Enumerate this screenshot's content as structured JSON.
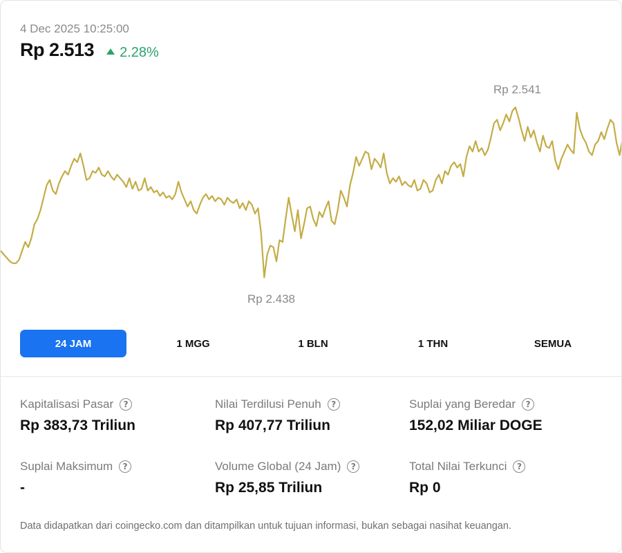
{
  "header": {
    "timestamp": "4 Dec 2025 10:25:00",
    "price": "Rp 2.513",
    "change": "2.28%",
    "change_color": "#2aa36b"
  },
  "chart_data": {
    "type": "line",
    "title": "",
    "max_label": "Rp 2.541",
    "min_label": "Rp 2.438",
    "max_value": 2541,
    "min_value": 2438,
    "line_color": "#c4ac45",
    "y_unit": "Rp",
    "x_range": "24 hours",
    "values": [
      2456,
      2454,
      2452,
      2450,
      2449,
      2449,
      2451,
      2456,
      2461,
      2458,
      2463,
      2471,
      2474,
      2479,
      2486,
      2493,
      2496,
      2490,
      2488,
      2494,
      2498,
      2501,
      2499,
      2504,
      2508,
      2506,
      2511,
      2504,
      2496,
      2497,
      2501,
      2500,
      2503,
      2499,
      2498,
      2501,
      2498,
      2496,
      2499,
      2497,
      2495,
      2492,
      2497,
      2491,
      2495,
      2490,
      2491,
      2497,
      2490,
      2492,
      2489,
      2490,
      2487,
      2489,
      2486,
      2487,
      2485,
      2488,
      2495,
      2489,
      2485,
      2481,
      2484,
      2479,
      2477,
      2482,
      2486,
      2488,
      2485,
      2487,
      2484,
      2486,
      2485,
      2482,
      2486,
      2484,
      2483,
      2485,
      2480,
      2483,
      2479,
      2484,
      2482,
      2477,
      2480,
      2466,
      2441,
      2454,
      2459,
      2458,
      2450,
      2462,
      2461,
      2474,
      2486,
      2476,
      2467,
      2479,
      2463,
      2471,
      2480,
      2481,
      2474,
      2470,
      2478,
      2475,
      2480,
      2484,
      2473,
      2471,
      2479,
      2490,
      2486,
      2481,
      2493,
      2500,
      2509,
      2504,
      2508,
      2512,
      2511,
      2502,
      2508,
      2506,
      2503,
      2511,
      2500,
      2494,
      2497,
      2495,
      2498,
      2493,
      2495,
      2493,
      2492,
      2496,
      2490,
      2491,
      2496,
      2494,
      2489,
      2490,
      2496,
      2499,
      2494,
      2501,
      2499,
      2504,
      2506,
      2503,
      2505,
      2498,
      2509,
      2515,
      2512,
      2518,
      2512,
      2514,
      2510,
      2513,
      2520,
      2528,
      2530,
      2524,
      2528,
      2533,
      2529,
      2535,
      2537,
      2531,
      2524,
      2518,
      2526,
      2520,
      2524,
      2517,
      2512,
      2521,
      2515,
      2514,
      2518,
      2507,
      2502,
      2508,
      2512,
      2516,
      2513,
      2511,
      2534,
      2525,
      2520,
      2517,
      2512,
      2510,
      2516,
      2518,
      2523,
      2519,
      2525,
      2530,
      2528,
      2517,
      2510,
      2520
    ]
  },
  "tabs": [
    {
      "label": "24 JAM",
      "active": true
    },
    {
      "label": "1 MGG",
      "active": false
    },
    {
      "label": "1 BLN",
      "active": false
    },
    {
      "label": "1 THN",
      "active": false
    },
    {
      "label": "SEMUA",
      "active": false
    }
  ],
  "stats": [
    {
      "label": "Kapitalisasi Pasar",
      "value": "Rp 383,73 Triliun"
    },
    {
      "label": "Nilai Terdilusi Penuh",
      "value": "Rp 407,77 Triliun"
    },
    {
      "label": "Suplai yang Beredar",
      "value": "152,02 Miliar DOGE"
    },
    {
      "label": "Suplai Maksimum",
      "value": "-"
    },
    {
      "label": "Volume Global (24 Jam)",
      "value": "Rp 25,85 Triliun"
    },
    {
      "label": "Total Nilai Terkunci",
      "value": "Rp 0"
    }
  ],
  "help_icon_glyph": "?",
  "disclaimer": "Data didapatkan dari coingecko.com dan ditampilkan untuk tujuan informasi, bukan sebagai nasihat keuangan."
}
